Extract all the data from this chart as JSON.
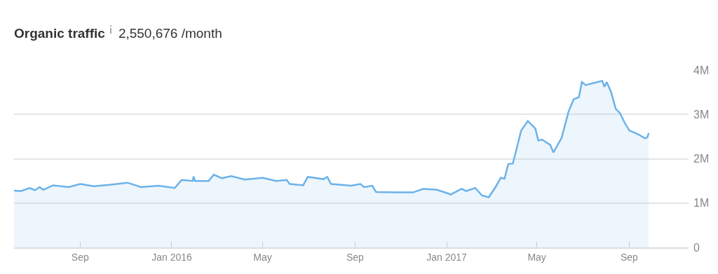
{
  "chart_data": {
    "type": "area",
    "title": "Organic traffic",
    "subtitle": "2,550,676 /month",
    "x": [
      "2015-06-05",
      "2015-06-14",
      "2015-06-26",
      "2015-07-03",
      "2015-07-09",
      "2015-07-14",
      "2015-07-27",
      "2015-08-17",
      "2015-09-01",
      "2015-09-19",
      "2015-10-10",
      "2015-11-03",
      "2015-11-21",
      "2015-12-14",
      "2016-01-05",
      "2016-01-14",
      "2016-01-29",
      "2016-01-30",
      "2016-02-01",
      "2016-02-19",
      "2016-02-26",
      "2016-03-08",
      "2016-03-20",
      "2016-04-07",
      "2016-05-01",
      "2016-05-19",
      "2016-06-02",
      "2016-06-06",
      "2016-06-24",
      "2016-06-30",
      "2016-07-21",
      "2016-07-26",
      "2016-07-31",
      "2016-08-27",
      "2016-09-08",
      "2016-09-13",
      "2016-09-24",
      "2016-09-29",
      "2016-10-26",
      "2016-11-17",
      "2016-12-01",
      "2016-12-19",
      "2017-01-04",
      "2017-01-06",
      "2017-01-21",
      "2017-01-27",
      "2017-02-08",
      "2017-02-17",
      "2017-02-26",
      "2017-03-07",
      "2017-03-14",
      "2017-03-19",
      "2017-03-24",
      "2017-03-30",
      "2017-04-03",
      "2017-04-10",
      "2017-04-19",
      "2017-04-29",
      "2017-05-03",
      "2017-05-08",
      "2017-05-19",
      "2017-05-23",
      "2017-06-03",
      "2017-06-12",
      "2017-06-19",
      "2017-06-26",
      "2017-06-30",
      "2017-07-05",
      "2017-07-21",
      "2017-07-27",
      "2017-07-30",
      "2017-08-02",
      "2017-08-08",
      "2017-08-14",
      "2017-08-20",
      "2017-08-26",
      "2017-09-01",
      "2017-09-13",
      "2017-09-22",
      "2017-09-25",
      "2017-09-27"
    ],
    "series": [
      {
        "color": "#6cb2e9",
        "values": [
          1280000,
          1270000,
          1340000,
          1290000,
          1360000,
          1300000,
          1400000,
          1360000,
          1430000,
          1380000,
          1410000,
          1460000,
          1360000,
          1390000,
          1340000,
          1520000,
          1500000,
          1600000,
          1500000,
          1500000,
          1640000,
          1560000,
          1610000,
          1530000,
          1570000,
          1500000,
          1520000,
          1430000,
          1400000,
          1590000,
          1540000,
          1590000,
          1430000,
          1390000,
          1430000,
          1360000,
          1390000,
          1250000,
          1240000,
          1240000,
          1320000,
          1300000,
          1210000,
          1190000,
          1320000,
          1270000,
          1340000,
          1170000,
          1130000,
          1360000,
          1570000,
          1550000,
          1880000,
          1890000,
          2150000,
          2630000,
          2850000,
          2680000,
          2410000,
          2430000,
          2310000,
          2140000,
          2470000,
          3050000,
          3340000,
          3390000,
          3730000,
          3660000,
          3730000,
          3760000,
          3620000,
          3730000,
          3500000,
          3130000,
          3020000,
          2810000,
          2640000,
          2550000,
          2460000,
          2480000,
          2580000
        ]
      }
    ],
    "xlim": [
      "2015-06-05",
      "2017-11-19"
    ],
    "xticks": [
      {
        "value": "2015-09-01",
        "label": "Sep"
      },
      {
        "value": "2016-01-01",
        "label": "Jan 2016"
      },
      {
        "value": "2016-05-01",
        "label": "May"
      },
      {
        "value": "2016-09-01",
        "label": "Sep"
      },
      {
        "value": "2017-01-01",
        "label": "Jan 2017"
      },
      {
        "value": "2017-05-01",
        "label": "May"
      },
      {
        "value": "2017-09-01",
        "label": "Sep"
      }
    ],
    "ylim": [
      0,
      4000000
    ],
    "yticks": [
      0,
      {
        "value": 1000000,
        "label": "1M"
      },
      {
        "value": 2000000,
        "label": "2M"
      },
      {
        "value": 3000000,
        "label": "3M"
      },
      {
        "value": 4000000,
        "label": "4M"
      }
    ],
    "grid": "y"
  }
}
